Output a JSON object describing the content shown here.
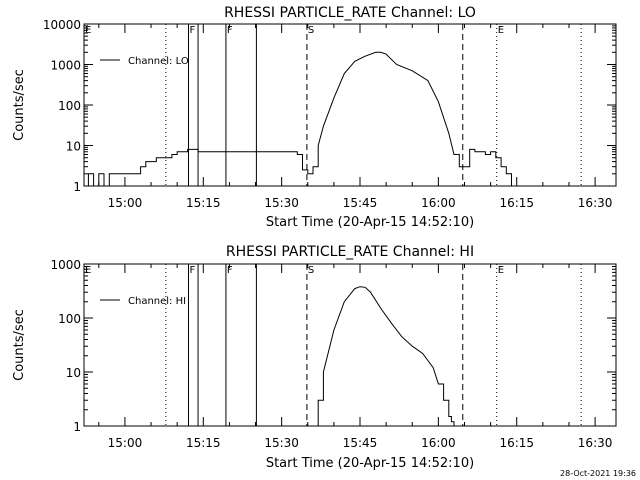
{
  "footer": {
    "timestamp": "28-Oct-2021 19:36"
  },
  "chart_data": [
    {
      "type": "line",
      "title": "RHESSI PARTICLE_RATE Channel: LO",
      "xlabel": "Start Time (20-Apr-15 14:52:10)",
      "ylabel": "Counts/sec",
      "yscale": "log",
      "ylim": [
        1,
        10000
      ],
      "xlim": [
        "14:52:10",
        "16:34:00"
      ],
      "x_ticks": [
        "15:00",
        "15:15",
        "15:30",
        "15:45",
        "16:00",
        "16:15",
        "16:30"
      ],
      "y_ticks": [
        "1",
        "10",
        "100",
        "1000",
        "10000"
      ],
      "legend": {
        "label": "Channel: LO",
        "placement": "top-left"
      },
      "markers": [
        {
          "label": "E",
          "time": "14:52:10",
          "style": "dotted"
        },
        {
          "label": "",
          "time": "15:07:50",
          "style": "dotted"
        },
        {
          "label": "F",
          "time": "15:12:10",
          "style": "solid"
        },
        {
          "label": "",
          "time": "15:14:00",
          "style": "solid"
        },
        {
          "label": "F",
          "time": "15:19:20",
          "style": "solid"
        },
        {
          "label": "",
          "time": "15:25:10",
          "style": "solid"
        },
        {
          "label": "S",
          "time": "15:34:50",
          "style": "dashed"
        },
        {
          "label": "",
          "time": "16:04:40",
          "style": "dashed"
        },
        {
          "label": "E",
          "time": "16:11:10",
          "style": "dotted"
        },
        {
          "label": "",
          "time": "16:27:20",
          "style": "dotted"
        }
      ],
      "series": [
        {
          "name": "Channel: LO",
          "x": [
            "14:52:10",
            "14:53:00",
            "14:54:00",
            "14:55:00",
            "14:56:00",
            "14:57:00",
            "14:58:00",
            "14:59:00",
            "15:00:00",
            "15:01:00",
            "15:02:00",
            "15:03:00",
            "15:04:00",
            "15:05:00",
            "15:06:00",
            "15:07:00",
            "15:08:00",
            "15:09:00",
            "15:10:00",
            "15:11:00",
            "15:12:00",
            "15:14:00",
            "15:18:00",
            "15:22:00",
            "15:26:00",
            "15:30:00",
            "15:33:00",
            "15:34:00",
            "15:35:00",
            "15:36:00",
            "15:37:00",
            "15:38:00",
            "15:40:00",
            "15:42:00",
            "15:44:00",
            "15:46:00",
            "15:48:00",
            "15:49:00",
            "15:50:00",
            "15:52:00",
            "15:55:00",
            "15:58:00",
            "16:00:00",
            "16:02:00",
            "16:03:00",
            "16:04:00",
            "16:05:00",
            "16:06:00",
            "16:07:00",
            "16:08:00",
            "16:09:00",
            "16:10:00",
            "16:11:00",
            "16:12:00",
            "16:13:00",
            "16:14:00",
            "16:15:00",
            "16:16:00",
            "16:18:00",
            "16:20:00",
            "16:22:00",
            "16:24:00",
            "16:26:00"
          ],
          "values": [
            1,
            2,
            1,
            2,
            1,
            2,
            2,
            2,
            2,
            2,
            2,
            3,
            4,
            4,
            5,
            5,
            5,
            6,
            7,
            7,
            8,
            7,
            7,
            7,
            7,
            7,
            6,
            2.5,
            2,
            3,
            10,
            30,
            150,
            600,
            1200,
            1600,
            2000,
            2000,
            1800,
            1000,
            700,
            400,
            120,
            20,
            6,
            3,
            3,
            8,
            7,
            7,
            6,
            7,
            5,
            3,
            2,
            1,
            1,
            1,
            1,
            1,
            1,
            1,
            1
          ]
        }
      ]
    },
    {
      "type": "line",
      "title": "RHESSI PARTICLE_RATE Channel: HI",
      "xlabel": "Start Time (20-Apr-15 14:52:10)",
      "ylabel": "Counts/sec",
      "yscale": "log",
      "ylim": [
        1,
        1000
      ],
      "xlim": [
        "14:52:10",
        "16:34:00"
      ],
      "x_ticks": [
        "15:00",
        "15:15",
        "15:30",
        "15:45",
        "16:00",
        "16:15",
        "16:30"
      ],
      "y_ticks": [
        "1",
        "10",
        "100",
        "1000"
      ],
      "legend": {
        "label": "Channel: HI",
        "placement": "top-left"
      },
      "markers": [
        {
          "label": "E",
          "time": "14:52:10",
          "style": "dotted"
        },
        {
          "label": "",
          "time": "15:07:50",
          "style": "dotted"
        },
        {
          "label": "F",
          "time": "15:12:10",
          "style": "solid"
        },
        {
          "label": "",
          "time": "15:14:00",
          "style": "solid"
        },
        {
          "label": "F",
          "time": "15:19:20",
          "style": "solid"
        },
        {
          "label": "",
          "time": "15:25:10",
          "style": "solid"
        },
        {
          "label": "S",
          "time": "15:34:50",
          "style": "dashed"
        },
        {
          "label": "",
          "time": "16:04:40",
          "style": "dashed"
        },
        {
          "label": "E",
          "time": "16:11:10",
          "style": "dotted"
        },
        {
          "label": "",
          "time": "16:27:20",
          "style": "dotted"
        }
      ],
      "series": [
        {
          "name": "Channel: HI",
          "x": [
            "15:36:00",
            "15:37:00",
            "15:38:00",
            "15:40:00",
            "15:42:00",
            "15:44:00",
            "15:45:00",
            "15:46:00",
            "15:47:00",
            "15:49:00",
            "15:51:00",
            "15:53:00",
            "15:55:00",
            "15:57:00",
            "15:59:00",
            "16:00:00",
            "16:01:00",
            "16:02:00",
            "16:02:30",
            "16:03:00"
          ],
          "values": [
            1,
            3,
            10,
            60,
            200,
            350,
            380,
            370,
            300,
            150,
            80,
            45,
            30,
            22,
            12,
            6,
            3,
            1.5,
            1.2,
            1
          ]
        }
      ]
    }
  ]
}
